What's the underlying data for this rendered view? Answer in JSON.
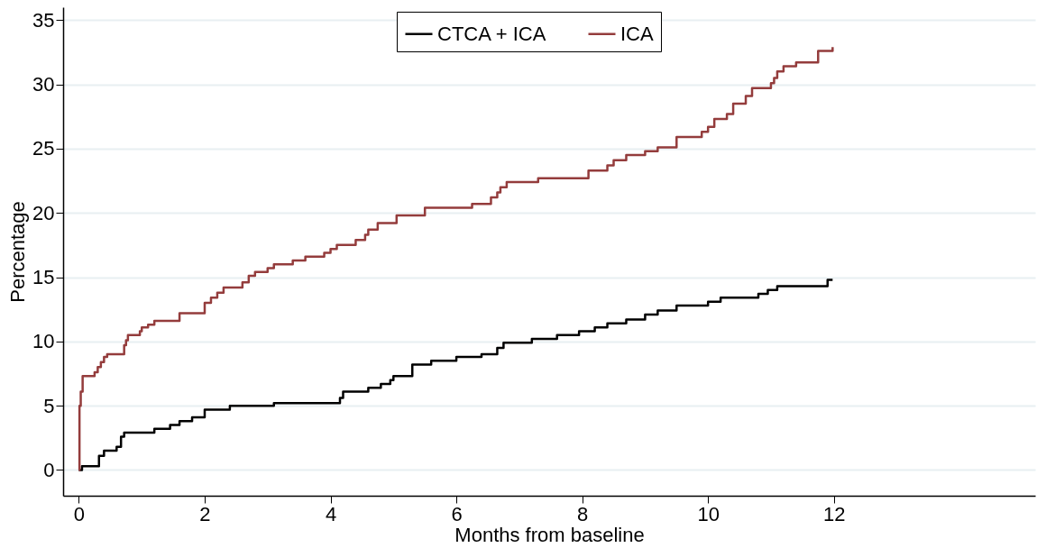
{
  "chart_data": {
    "type": "step",
    "xlabel": "Months from baseline",
    "ylabel": "Percentage",
    "xlim": [
      -0.25,
      15.2
    ],
    "ylim": [
      -2,
      36
    ],
    "xticks": [
      0,
      2,
      4,
      6,
      8,
      10,
      12
    ],
    "yticks": [
      0,
      5,
      10,
      15,
      20,
      25,
      30,
      35
    ],
    "grid": "y",
    "legend": "top",
    "marker": "none",
    "line_style": "solid",
    "series": [
      {
        "name": "CTCA + ICA",
        "color": "#000000",
        "x": [
          0,
          0.05,
          0.32,
          0.4,
          0.6,
          0.67,
          0.72,
          1.2,
          1.45,
          1.6,
          1.8,
          2.0,
          2.4,
          3.1,
          4.15,
          4.2,
          4.6,
          4.8,
          4.95,
          5.0,
          5.3,
          5.6,
          6.0,
          6.4,
          6.65,
          6.75,
          7.2,
          7.6,
          7.95,
          8.2,
          8.4,
          8.7,
          9.0,
          9.2,
          9.5,
          10.0,
          10.2,
          10.8,
          10.95,
          11.1,
          11.9,
          11.98
        ],
        "values": [
          0,
          0.3,
          1.1,
          1.5,
          1.8,
          2.6,
          2.9,
          3.2,
          3.5,
          3.8,
          4.1,
          4.7,
          5.0,
          5.2,
          5.6,
          6.1,
          6.4,
          6.7,
          7.0,
          7.3,
          8.2,
          8.5,
          8.8,
          9.0,
          9.5,
          9.9,
          10.2,
          10.5,
          10.8,
          11.1,
          11.4,
          11.7,
          12.1,
          12.4,
          12.8,
          13.1,
          13.4,
          13.7,
          14.0,
          14.3,
          14.8,
          14.8
        ]
      },
      {
        "name": "ICA",
        "color": "#943c3c",
        "x": [
          0,
          0.01,
          0.03,
          0.06,
          0.25,
          0.3,
          0.35,
          0.4,
          0.45,
          0.72,
          0.75,
          0.78,
          0.97,
          1.0,
          1.1,
          1.2,
          1.6,
          2.0,
          2.1,
          2.2,
          2.3,
          2.6,
          2.7,
          2.8,
          3.0,
          3.1,
          3.4,
          3.6,
          3.9,
          4.0,
          4.1,
          4.4,
          4.55,
          4.6,
          4.75,
          5.05,
          5.5,
          6.25,
          6.55,
          6.65,
          6.7,
          6.8,
          7.3,
          8.1,
          8.4,
          8.5,
          8.7,
          9.0,
          9.2,
          9.5,
          9.9,
          10.0,
          10.1,
          10.3,
          10.4,
          10.6,
          10.7,
          11.0,
          11.05,
          11.1,
          11.2,
          11.4,
          11.75,
          11.98
        ],
        "values": [
          0,
          5,
          6.1,
          7.3,
          7.6,
          8.0,
          8.4,
          8.8,
          9.0,
          9.7,
          10.1,
          10.5,
          10.8,
          11.1,
          11.3,
          11.6,
          12.2,
          13.0,
          13.4,
          13.8,
          14.2,
          14.6,
          15.1,
          15.4,
          15.7,
          16.0,
          16.3,
          16.6,
          16.9,
          17.2,
          17.5,
          17.9,
          18.3,
          18.7,
          19.2,
          19.8,
          20.4,
          20.7,
          21.2,
          21.6,
          22.0,
          22.4,
          22.7,
          23.3,
          23.7,
          24.1,
          24.5,
          24.8,
          25.1,
          25.9,
          26.3,
          26.7,
          27.3,
          27.7,
          28.5,
          29.1,
          29.7,
          30.1,
          30.5,
          31.0,
          31.4,
          31.7,
          32.6,
          32.9
        ]
      }
    ]
  }
}
